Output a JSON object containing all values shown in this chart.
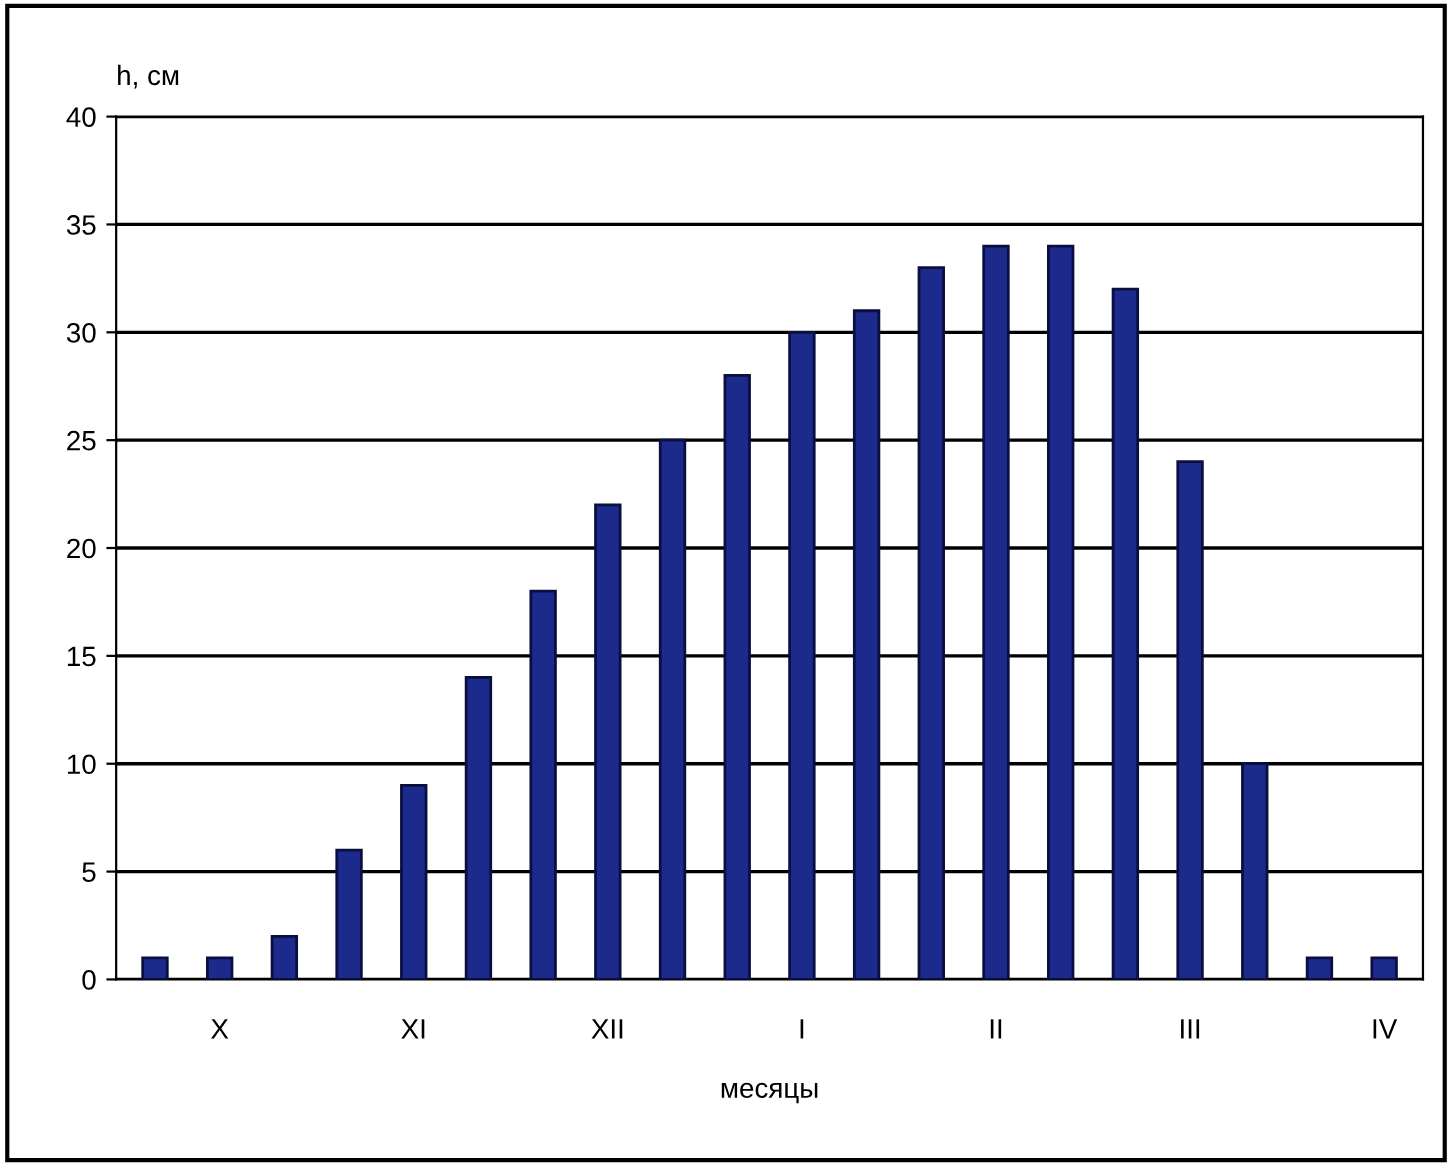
{
  "chart_data": {
    "type": "bar",
    "ylabel": "h, см",
    "xlabel": "месяцы",
    "categories": [
      null,
      "X",
      null,
      null,
      "XI",
      null,
      null,
      "XII",
      null,
      null,
      "I",
      null,
      null,
      "II",
      null,
      null,
      "III",
      null,
      null,
      "IV"
    ],
    "values": [
      1,
      1,
      2,
      6,
      9,
      14,
      18,
      22,
      25,
      28,
      30,
      31,
      33,
      34,
      34,
      32,
      24,
      10,
      1,
      1
    ],
    "color": "#1c2a8c",
    "ylim": [
      0,
      40
    ],
    "yticks": [
      0,
      5,
      10,
      15,
      20,
      25,
      30,
      35,
      40
    ],
    "grid": "y",
    "legend": false
  }
}
